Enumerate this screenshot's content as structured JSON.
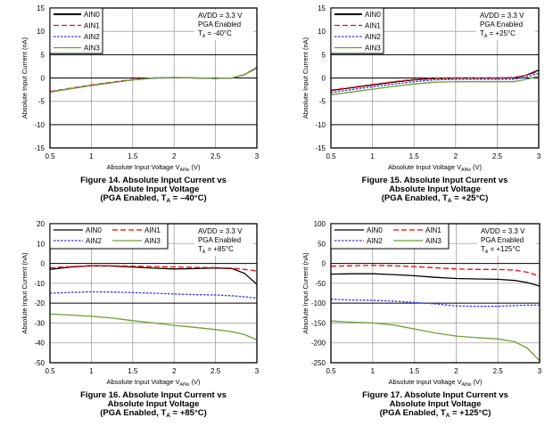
{
  "chart_data": [
    {
      "type": "line",
      "title": "Figure 14. Absolute Input Current vs Absolute Input Voltage (PGA Enabled, TA = -40°C)",
      "caption_lines": [
        "Figure 14. Absolute Input Current vs",
        "Absolute Input Voltage",
        "(PGA Enabled, T",
        "A",
        " = –40°C)"
      ],
      "xlabel": "Absolute Input Voltage V",
      "xlabel_sub": "AINx",
      "xlabel_unit": " (V)",
      "ylabel": "Absolute Input Current (nA)",
      "xlim": [
        0.5,
        3
      ],
      "ylim": [
        -15,
        15
      ],
      "xticks": [
        0.5,
        1,
        1.5,
        2,
        2.5,
        3
      ],
      "xtick_labels": [
        "0.5",
        "1",
        "1.5",
        "2",
        "2.5",
        "3"
      ],
      "yticks": [
        -15,
        -10,
        -5,
        0,
        5,
        10,
        15
      ],
      "ytick_labels": [
        "-15",
        "-10",
        "-5",
        "0",
        "5",
        "10",
        "15"
      ],
      "major_y": [
        -10,
        0,
        5
      ],
      "grid": true,
      "legend": {
        "placement": "top-left",
        "columns": 1
      },
      "conditions": [
        "AVDD = 3.3 V",
        "PGA Enabled",
        "T",
        "A",
        " = -40°C"
      ],
      "x": [
        0.5,
        0.75,
        1.0,
        1.25,
        1.5,
        1.75,
        2.0,
        2.25,
        2.5,
        2.7,
        2.85,
        3.0
      ],
      "series": [
        {
          "name": "AIN0",
          "color": "#000000",
          "dash": "solid",
          "values": [
            -3.0,
            -2.3,
            -1.6,
            -1.0,
            -0.4,
            0.0,
            0.1,
            0.0,
            -0.1,
            0.0,
            0.7,
            2.2
          ]
        },
        {
          "name": "AIN1",
          "color": "#ff0000",
          "dash": "dash",
          "values": [
            -2.9,
            -2.2,
            -1.5,
            -0.9,
            -0.3,
            0.0,
            0.1,
            0.0,
            -0.1,
            0.0,
            0.7,
            2.3
          ]
        },
        {
          "name": "AIN2",
          "color": "#3333ff",
          "dash": "dot",
          "values": [
            -3.0,
            -2.3,
            -1.6,
            -1.0,
            -0.4,
            -0.05,
            0.05,
            0.0,
            -0.1,
            0.0,
            0.7,
            2.2
          ]
        },
        {
          "name": "AIN3",
          "color": "#70a030",
          "dash": "solid",
          "values": [
            -3.0,
            -2.3,
            -1.6,
            -1.0,
            -0.4,
            0.0,
            0.1,
            0.0,
            -0.1,
            0.0,
            0.7,
            2.1
          ]
        }
      ]
    },
    {
      "type": "line",
      "title": "Figure 15. Absolute Input Current vs Absolute Input Voltage (PGA Enabled, TA = +25°C)",
      "caption_lines": [
        "Figure 15. Absolute Input Current vs",
        "Absolute Input Voltage",
        "(PGA Enabled, T",
        "A",
        " = +25°C)"
      ],
      "xlabel": "Absolute Input Voltage V",
      "xlabel_sub": "AINx",
      "xlabel_unit": " (V)",
      "ylabel": "Absolute Input Current (nA)",
      "xlim": [
        0.5,
        3
      ],
      "ylim": [
        -15,
        15
      ],
      "xticks": [
        0.5,
        1,
        1.5,
        2,
        2.5,
        3
      ],
      "xtick_labels": [
        "0.5",
        "1",
        "1.5",
        "2",
        "2.5",
        "3"
      ],
      "yticks": [
        -15,
        -10,
        -5,
        0,
        5,
        10,
        15
      ],
      "ytick_labels": [
        "-15",
        "-10",
        "-5",
        "0",
        "5",
        "10",
        "15"
      ],
      "major_y": [
        -10,
        0,
        5
      ],
      "grid": true,
      "legend": {
        "placement": "top-left",
        "columns": 1
      },
      "conditions": [
        "AVDD = 3.3 V",
        "PGA Enabled",
        "T",
        "A",
        " = +25°C"
      ],
      "x": [
        0.5,
        0.75,
        1.0,
        1.25,
        1.5,
        1.75,
        2.0,
        2.25,
        2.5,
        2.7,
        2.85,
        3.0
      ],
      "series": [
        {
          "name": "AIN0",
          "color": "#000000",
          "dash": "solid",
          "values": [
            -2.7,
            -2.1,
            -1.5,
            -0.9,
            -0.4,
            -0.1,
            0.0,
            0.0,
            0.0,
            0.0,
            0.6,
            1.7
          ]
        },
        {
          "name": "AIN1",
          "color": "#ff0000",
          "dash": "dash",
          "values": [
            -2.6,
            -2.0,
            -1.4,
            -0.8,
            -0.3,
            0.0,
            0.0,
            0.0,
            0.0,
            0.1,
            0.6,
            1.4
          ]
        },
        {
          "name": "AIN2",
          "color": "#3333ff",
          "dash": "dot",
          "values": [
            -3.1,
            -2.5,
            -1.9,
            -1.3,
            -0.8,
            -0.4,
            -0.3,
            -0.3,
            -0.3,
            -0.3,
            0.2,
            1.0
          ]
        },
        {
          "name": "AIN3",
          "color": "#70a030",
          "dash": "solid",
          "values": [
            -3.6,
            -3.0,
            -2.4,
            -1.8,
            -1.3,
            -0.9,
            -0.8,
            -0.8,
            -0.8,
            -0.8,
            -0.3,
            0.4
          ]
        }
      ]
    },
    {
      "type": "line",
      "title": "Figure 16. Absolute Input Current vs Absolute Input Voltage (PGA Enabled, TA = +85°C)",
      "caption_lines": [
        "Figure 16. Absolute Input Current vs",
        "Absolute Input Voltage",
        "(PGA Enabled, T",
        "A",
        " = +85°C)"
      ],
      "xlabel": "Absolute Input Voltage V",
      "xlabel_sub": "AINx",
      "xlabel_unit": " (V)",
      "ylabel": "Absolute Input Current (nA)",
      "xlim": [
        0.5,
        3
      ],
      "ylim": [
        -50,
        20
      ],
      "xticks": [
        0.5,
        1,
        1.5,
        2,
        2.5,
        3
      ],
      "xtick_labels": [
        "0.5",
        "1",
        "1.5",
        "2",
        "2.5",
        "3"
      ],
      "yticks": [
        -50,
        -40,
        -30,
        -20,
        -10,
        0,
        10,
        20
      ],
      "ytick_labels": [
        "-50",
        "-40",
        "-30",
        "-20",
        "-10",
        "0",
        "10",
        "20"
      ],
      "major_y": [
        -20,
        0
      ],
      "grid": true,
      "legend": {
        "placement": "top-left",
        "columns": 2
      },
      "conditions": [
        "AVDD = 3.3 V",
        "PGA Enabled",
        "T",
        "A",
        " = +85°C"
      ],
      "x": [
        0.5,
        0.75,
        1.0,
        1.25,
        1.5,
        1.75,
        2.0,
        2.25,
        2.5,
        2.7,
        2.85,
        3.0
      ],
      "series": [
        {
          "name": "AIN0",
          "color": "#000000",
          "dash": "solid",
          "values": [
            -3.0,
            -1.8,
            -1.2,
            -1.3,
            -1.8,
            -2.4,
            -2.8,
            -2.6,
            -2.3,
            -2.6,
            -5.0,
            -10.5
          ]
        },
        {
          "name": "AIN1",
          "color": "#ff0000",
          "dash": "dash",
          "values": [
            -2.2,
            -1.6,
            -1.2,
            -1.2,
            -1.4,
            -1.6,
            -1.8,
            -2.0,
            -2.1,
            -2.4,
            -3.0,
            -3.8
          ]
        },
        {
          "name": "AIN2",
          "color": "#3333ff",
          "dash": "dot",
          "values": [
            -15.0,
            -14.6,
            -14.3,
            -14.4,
            -14.7,
            -15.0,
            -15.4,
            -15.7,
            -15.9,
            -16.3,
            -16.8,
            -17.5
          ]
        },
        {
          "name": "AIN3",
          "color": "#70a030",
          "dash": "solid",
          "values": [
            -25.5,
            -26.0,
            -26.6,
            -27.5,
            -28.8,
            -30.0,
            -31.2,
            -32.2,
            -33.3,
            -34.4,
            -35.8,
            -38.5
          ]
        }
      ]
    },
    {
      "type": "line",
      "title": "Figure 17. Absolute Input Current vs Absolute Input Voltage (PGA Enabled, TA = +125°C)",
      "caption_lines": [
        "Figure 17. Absolute Input Current vs",
        "Absolute Input Voltage",
        "(PGA Enabled, T",
        "A",
        " = +125°C)"
      ],
      "xlabel": "Absolute Input Voltage V",
      "xlabel_sub": "AINx",
      "xlabel_unit": " (V)",
      "ylabel": "Absolute Input Current (nA)",
      "xlim": [
        0.5,
        3
      ],
      "ylim": [
        -250,
        100
      ],
      "xticks": [
        0.5,
        1,
        1.5,
        2,
        2.5,
        3
      ],
      "xtick_labels": [
        "0.5",
        "1",
        "1.5",
        "2",
        "2.5",
        "3"
      ],
      "yticks": [
        -250,
        -200,
        -150,
        -100,
        -50,
        0,
        50,
        100
      ],
      "ytick_labels": [
        "-250",
        "-200",
        "-150",
        "-100",
        "-50",
        "0",
        "50",
        "100"
      ],
      "major_y": [
        -100,
        0
      ],
      "grid": true,
      "legend": {
        "placement": "top-left",
        "columns": 2
      },
      "conditions": [
        "AVDD = 3.3 V",
        "PGA Enabled",
        "T",
        "A",
        " = +125°C"
      ],
      "x": [
        0.5,
        0.75,
        1.0,
        1.25,
        1.5,
        1.75,
        2.0,
        2.25,
        2.5,
        2.7,
        2.85,
        3.0
      ],
      "series": [
        {
          "name": "AIN0",
          "color": "#000000",
          "dash": "solid",
          "values": [
            -27,
            -26,
            -26,
            -28,
            -31,
            -35,
            -38,
            -39,
            -40,
            -43,
            -48,
            -57
          ]
        },
        {
          "name": "AIN1",
          "color": "#ff0000",
          "dash": "dash",
          "values": [
            -7,
            -6,
            -5,
            -6,
            -8,
            -11,
            -14,
            -15,
            -15,
            -17,
            -22,
            -32
          ]
        },
        {
          "name": "AIN2",
          "color": "#3333ff",
          "dash": "dot",
          "values": [
            -90,
            -92,
            -93,
            -95,
            -98,
            -102,
            -107,
            -108,
            -108,
            -106,
            -105,
            -105
          ]
        },
        {
          "name": "AIN3",
          "color": "#70a030",
          "dash": "solid",
          "values": [
            -145,
            -148,
            -150,
            -155,
            -165,
            -175,
            -183,
            -187,
            -190,
            -197,
            -213,
            -245
          ]
        }
      ]
    }
  ]
}
